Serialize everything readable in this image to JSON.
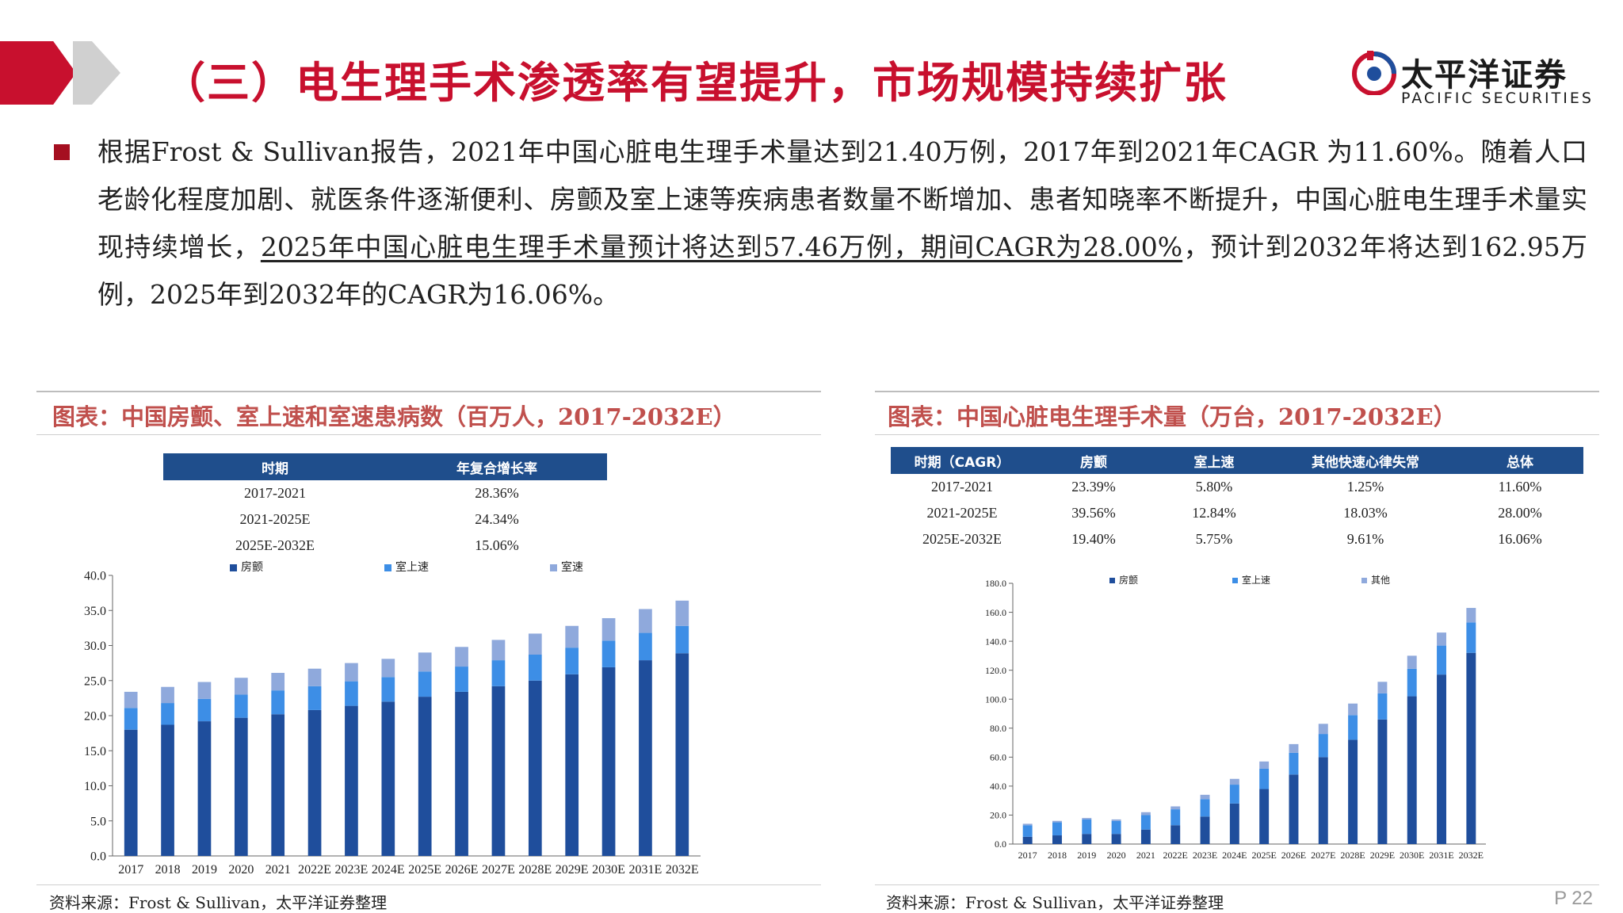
{
  "header": {
    "title": "（三）电生理手术渗透率有望提升，市场规模持续扩张",
    "logo_cn": "太平洋证券",
    "logo_en": "PACIFIC SECURITIES"
  },
  "paragraph": {
    "part1": "根据Frost & Sullivan报告，2021年中国心脏电生理手术量达到21.40万例，2017年到2021年CAGR 为11.60%。随着人口老龄化程度加剧、就医条件逐渐便利、房颤及室上速等疾病患者数量不断增加、患者知晓率不断提升，中国心脏电生理手术量实现持续增长，",
    "underlined": "2025年中国心脏电生理手术量预计将达到57.46万例，期间CAGR为28.00%",
    "part2": "，预计到2032年将达到162.95万例，2025年到2032年的CAGR为16.06%。"
  },
  "left_panel": {
    "title": "图表：中国房颤、室上速和室速患病数（百万人，2017-2032E）",
    "table": {
      "headers": [
        "时期",
        "年复合增长率"
      ],
      "rows": [
        [
          "2017-2021",
          "28.36%"
        ],
        [
          "2021-2025E",
          "24.34%"
        ],
        [
          "2025E-2032E",
          "15.06%"
        ]
      ]
    },
    "source": "资料来源：Frost & Sullivan，太平洋证券整理"
  },
  "right_panel": {
    "title": "图表：中国心脏电生理手术量（万台，2017-2032E）",
    "table": {
      "headers": [
        "时期（CAGR）",
        "房颤",
        "室上速",
        "其他快速心律失常",
        "总体"
      ],
      "rows": [
        [
          "2017-2021",
          "23.39%",
          "5.80%",
          "1.25%",
          "11.60%"
        ],
        [
          "2021-2025E",
          "39.56%",
          "12.84%",
          "18.03%",
          "28.00%"
        ],
        [
          "2025E-2032E",
          "19.40%",
          "5.75%",
          "9.61%",
          "16.06%"
        ]
      ]
    },
    "source": "资料来源：Frost & Sullivan，太平洋证券整理"
  },
  "page_number": "P 22",
  "colors": {
    "brand_red": "#c8102e",
    "series_dark": "#1f4e9c",
    "series_mid": "#3d8ee6",
    "series_light": "#8fa9dc"
  },
  "chart_data": [
    {
      "type": "bar",
      "stacked": true,
      "categories": [
        "2017",
        "2018",
        "2019",
        "2020",
        "2021",
        "2022E",
        "2023E",
        "2024E",
        "2025E",
        "2026E",
        "2027E",
        "2028E",
        "2029E",
        "2030E",
        "2031E",
        "2032E"
      ],
      "series": [
        {
          "name": "房颤",
          "values": [
            18.0,
            18.7,
            19.2,
            19.7,
            20.2,
            20.8,
            21.4,
            22.0,
            22.7,
            23.4,
            24.2,
            25.0,
            25.9,
            26.9,
            27.9,
            28.9
          ]
        },
        {
          "name": "室上速",
          "values": [
            3.1,
            3.1,
            3.2,
            3.3,
            3.4,
            3.4,
            3.5,
            3.5,
            3.6,
            3.6,
            3.7,
            3.7,
            3.8,
            3.8,
            3.9,
            3.9
          ]
        },
        {
          "name": "室速",
          "values": [
            2.3,
            2.3,
            2.4,
            2.4,
            2.5,
            2.5,
            2.6,
            2.6,
            2.7,
            2.8,
            2.9,
            3.0,
            3.1,
            3.2,
            3.4,
            3.6
          ]
        }
      ],
      "ylim": [
        0,
        40
      ],
      "yticks": [
        "0.0",
        "5.0",
        "10.0",
        "15.0",
        "20.0",
        "25.0",
        "30.0",
        "35.0",
        "40.0"
      ],
      "legend": "top"
    },
    {
      "type": "bar",
      "stacked": true,
      "categories": [
        "2017",
        "2018",
        "2019",
        "2020",
        "2021",
        "2022E",
        "2023E",
        "2024E",
        "2025E",
        "2026E",
        "2027E",
        "2028E",
        "2029E",
        "2030E",
        "2031E",
        "2032E"
      ],
      "series": [
        {
          "name": "房颤",
          "values": [
            5,
            6,
            7,
            7,
            10,
            13,
            19,
            28,
            38,
            48,
            60,
            72,
            86,
            102,
            117,
            132
          ]
        },
        {
          "name": "室上速",
          "values": [
            8,
            9,
            10,
            9,
            10,
            11,
            12,
            13,
            14,
            15,
            16,
            17,
            18,
            19,
            20,
            21
          ]
        },
        {
          "name": "其他",
          "values": [
            1,
            1,
            1,
            1,
            2,
            2,
            3,
            4,
            5,
            6,
            7,
            8,
            8,
            9,
            9,
            10
          ]
        }
      ],
      "ylim": [
        0,
        180
      ],
      "yticks": [
        "0.0",
        "20.0",
        "40.0",
        "60.0",
        "80.0",
        "100.0",
        "120.0",
        "140.0",
        "160.0",
        "180.0"
      ],
      "legend": "top"
    }
  ]
}
